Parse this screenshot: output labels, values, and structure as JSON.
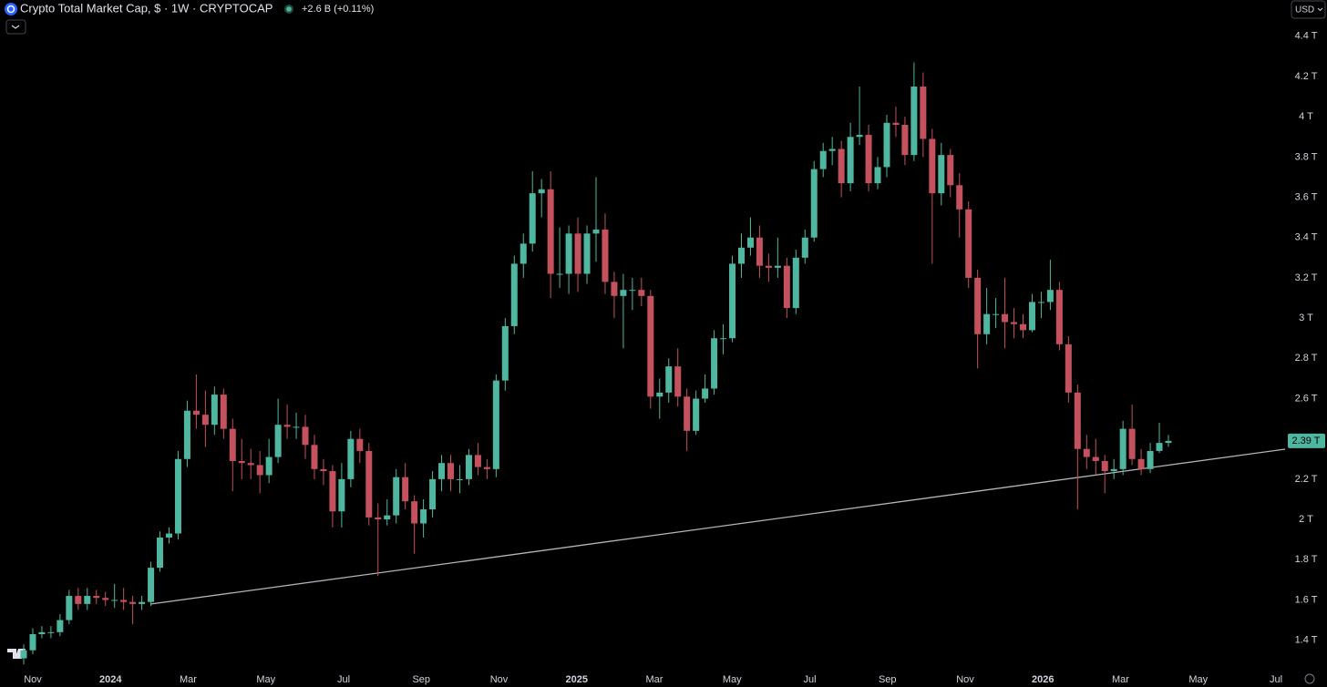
{
  "chart_data": {
    "type": "candlestick",
    "title": "Crypto Total Market Cap, $ · 1W · CRYPTOCAP",
    "change": "+2.6 B (+0.11%)",
    "currency": "USD",
    "up_color": "#4fb7a0",
    "down_color": "#c4515e",
    "grid": false,
    "x_labels": [
      "Nov",
      "2024",
      "Mar",
      "May",
      "Jul",
      "Sep",
      "Nov",
      "2025",
      "Mar",
      "May",
      "Jul",
      "Sep",
      "Nov",
      "2026",
      "Mar",
      "May",
      "Jul"
    ],
    "ylim": [
      1.24,
      4.58
    ],
    "yticks": [
      {
        "value": 1.4,
        "label": "1.4 T"
      },
      {
        "value": 1.6,
        "label": "1.6 T"
      },
      {
        "value": 1.8,
        "label": "1.8 T"
      },
      {
        "value": 2,
        "label": "2 T"
      },
      {
        "value": 2.2,
        "label": "2.2 T"
      },
      {
        "value": 2.4,
        "label": "2.4 T"
      },
      {
        "value": 2.6,
        "label": "2.6 T"
      },
      {
        "value": 2.8,
        "label": "2.8 T"
      },
      {
        "value": 3,
        "label": "3 T"
      },
      {
        "value": 3.2,
        "label": "3.2 T"
      },
      {
        "value": 3.4,
        "label": "3.4 T"
      },
      {
        "value": 3.6,
        "label": "3.6 T"
      },
      {
        "value": 3.8,
        "label": "3.8 T"
      },
      {
        "value": 4,
        "label": "4 T"
      },
      {
        "value": 4.2,
        "label": "4.2 T"
      },
      {
        "value": 4.4,
        "label": "4.4 T"
      }
    ],
    "last_price": {
      "value": 2.39,
      "label": "2.39 T"
    },
    "open": [
      1.31,
      1.35,
      1.43,
      1.44,
      1.44,
      1.5,
      1.62,
      1.58,
      1.62,
      1.61,
      1.6,
      1.6,
      1.59,
      1.58,
      1.59,
      1.76,
      1.91,
      1.93,
      2.3,
      2.54,
      2.52,
      2.47,
      2.62,
      2.45,
      2.29,
      2.28,
      2.27,
      2.22,
      2.31,
      2.47,
      2.46,
      2.46,
      2.37,
      2.25,
      2.24,
      2.04,
      2.2,
      2.4,
      2.34,
      2.01,
      2.0,
      2.02,
      2.21,
      2.09,
      1.98,
      2.05,
      2.2,
      2.28,
      2.2,
      2.2,
      2.32,
      2.26,
      2.25,
      2.69,
      2.96,
      3.27,
      3.37,
      3.62,
      3.64,
      3.22,
      3.22,
      3.42,
      3.22,
      3.42,
      3.44,
      3.18,
      3.11,
      3.14,
      3.14,
      3.11,
      2.61,
      2.63,
      2.76,
      2.61,
      2.44,
      2.6,
      2.65,
      2.9,
      2.9,
      3.27,
      3.35,
      3.4,
      3.26,
      3.25,
      3.26,
      3.05,
      3.3,
      3.4,
      3.74,
      3.83,
      3.84,
      3.67,
      3.9,
      3.91,
      3.67,
      3.75,
      3.97,
      3.96,
      3.81,
      4.15,
      3.89,
      3.62,
      3.81,
      3.66,
      3.54,
      3.2,
      2.92,
      3.02,
      3.02,
      2.98,
      2.97,
      2.94,
      3.08,
      3.08,
      3.14,
      2.87,
      2.63,
      2.35,
      2.31,
      2.29,
      2.24,
      2.25,
      2.45,
      2.3,
      2.25,
      2.34,
      2.38
    ],
    "high": [
      1.38,
      1.46,
      1.47,
      1.47,
      1.53,
      1.65,
      1.66,
      1.66,
      1.65,
      1.64,
      1.68,
      1.66,
      1.62,
      1.62,
      1.79,
      1.94,
      1.96,
      2.34,
      2.59,
      2.72,
      2.64,
      2.66,
      2.65,
      2.5,
      2.4,
      2.35,
      2.34,
      2.4,
      2.6,
      2.57,
      2.53,
      2.52,
      2.42,
      2.3,
      2.27,
      2.28,
      2.44,
      2.45,
      2.38,
      2.08,
      2.1,
      2.25,
      2.28,
      2.12,
      2.1,
      2.24,
      2.32,
      2.32,
      2.27,
      2.35,
      2.38,
      2.3,
      2.72,
      3.0,
      3.31,
      3.42,
      3.73,
      3.69,
      3.73,
      3.45,
      3.46,
      3.5,
      3.46,
      3.7,
      3.52,
      3.23,
      3.22,
      3.2,
      3.2,
      3.14,
      2.7,
      2.8,
      2.85,
      2.65,
      2.64,
      2.72,
      2.94,
      2.97,
      3.31,
      3.42,
      3.5,
      3.46,
      3.32,
      3.4,
      3.3,
      3.34,
      3.44,
      3.78,
      3.87,
      3.9,
      3.88,
      3.97,
      4.15,
      3.96,
      3.8,
      4.01,
      4.05,
      4.0,
      4.27,
      4.22,
      3.94,
      3.87,
      3.84,
      3.72,
      3.58,
      3.24,
      3.15,
      3.1,
      3.2,
      3.05,
      3.02,
      3.12,
      3.13,
      3.29,
      3.18,
      2.91,
      2.67,
      2.42,
      2.4,
      2.32,
      2.3,
      2.49,
      2.57,
      2.35,
      2.38,
      2.48,
      2.42
    ],
    "low": [
      1.28,
      1.33,
      1.41,
      1.41,
      1.42,
      1.48,
      1.55,
      1.55,
      1.58,
      1.57,
      1.56,
      1.55,
      1.48,
      1.55,
      1.57,
      1.74,
      1.88,
      1.9,
      2.26,
      2.45,
      2.36,
      2.42,
      2.4,
      2.14,
      2.2,
      2.2,
      2.13,
      2.18,
      2.28,
      2.4,
      2.4,
      2.3,
      2.2,
      2.17,
      1.96,
      1.96,
      2.16,
      2.28,
      1.97,
      1.72,
      1.97,
      1.98,
      2.05,
      1.83,
      1.91,
      2.01,
      2.14,
      2.14,
      2.13,
      2.17,
      2.22,
      2.2,
      2.21,
      2.64,
      2.92,
      3.2,
      3.33,
      3.5,
      3.1,
      3.15,
      3.12,
      3.13,
      3.17,
      3.28,
      3.12,
      3.0,
      2.85,
      3.04,
      3.06,
      2.55,
      2.5,
      2.58,
      2.56,
      2.34,
      2.42,
      2.58,
      2.62,
      2.82,
      2.88,
      3.2,
      3.31,
      3.2,
      3.18,
      3.2,
      3.0,
      3.02,
      3.27,
      3.38,
      3.7,
      3.76,
      3.6,
      3.63,
      3.86,
      3.63,
      3.64,
      3.7,
      3.9,
      3.76,
      3.78,
      3.8,
      3.27,
      3.56,
      3.6,
      3.4,
      3.15,
      2.75,
      2.87,
      2.95,
      2.85,
      2.9,
      2.9,
      2.93,
      3.0,
      3.04,
      2.84,
      2.58,
      2.05,
      2.25,
      2.22,
      2.13,
      2.2,
      2.22,
      2.27,
      2.22,
      2.23,
      2.33,
      2.36
    ],
    "close": [
      1.35,
      1.43,
      1.44,
      1.44,
      1.5,
      1.62,
      1.58,
      1.62,
      1.61,
      1.6,
      1.6,
      1.59,
      1.58,
      1.59,
      1.76,
      1.91,
      1.93,
      2.3,
      2.54,
      2.52,
      2.47,
      2.62,
      2.45,
      2.29,
      2.28,
      2.27,
      2.22,
      2.31,
      2.47,
      2.46,
      2.46,
      2.37,
      2.25,
      2.24,
      2.04,
      2.2,
      2.4,
      2.34,
      2.01,
      2.0,
      2.02,
      2.21,
      2.09,
      1.98,
      2.05,
      2.2,
      2.28,
      2.2,
      2.2,
      2.32,
      2.26,
      2.25,
      2.69,
      2.96,
      3.27,
      3.37,
      3.62,
      3.64,
      3.22,
      3.22,
      3.42,
      3.22,
      3.42,
      3.44,
      3.18,
      3.11,
      3.14,
      3.14,
      3.11,
      2.61,
      2.63,
      2.76,
      2.61,
      2.44,
      2.6,
      2.65,
      2.9,
      2.9,
      3.27,
      3.35,
      3.4,
      3.26,
      3.25,
      3.26,
      3.05,
      3.3,
      3.4,
      3.74,
      3.83,
      3.84,
      3.67,
      3.9,
      3.91,
      3.67,
      3.75,
      3.97,
      3.96,
      3.81,
      4.15,
      3.89,
      3.62,
      3.81,
      3.66,
      3.54,
      3.2,
      2.92,
      3.02,
      3.02,
      2.98,
      2.97,
      2.94,
      3.08,
      3.08,
      3.14,
      2.87,
      2.63,
      2.35,
      2.31,
      2.29,
      2.24,
      2.25,
      2.45,
      2.3,
      2.25,
      2.34,
      2.38,
      2.39
    ]
  }
}
